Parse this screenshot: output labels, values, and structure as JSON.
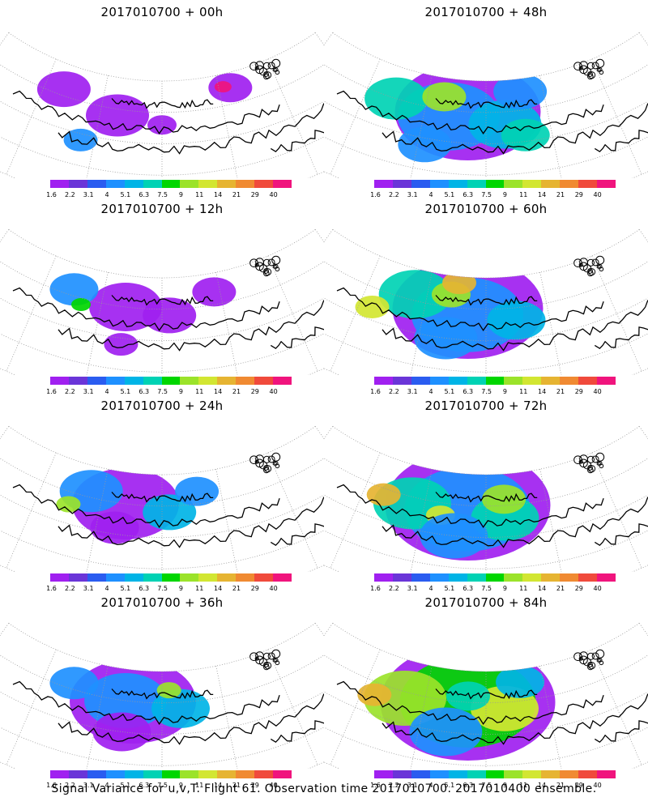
{
  "panels": [
    {
      "title": "2017010700 + 00h",
      "coverage": 0.15
    },
    {
      "title": "2017010700 + 48h",
      "coverage": 0.6
    },
    {
      "title": "2017010700 + 12h",
      "coverage": 0.25
    },
    {
      "title": "2017010700 + 60h",
      "coverage": 0.7
    },
    {
      "title": "2017010700 + 24h",
      "coverage": 0.35
    },
    {
      "title": "2017010700 + 72h",
      "coverage": 0.8
    },
    {
      "title": "2017010700 + 36h",
      "coverage": 0.45
    },
    {
      "title": "2017010700 + 84h",
      "coverage": 0.9
    }
  ],
  "colorbar": {
    "labels": [
      "1.6",
      "2.2",
      "3.1",
      "4",
      "5.1",
      "6.3",
      "7.5",
      "9",
      "11",
      "14",
      "21",
      "29",
      "40"
    ],
    "colors": [
      "#a020f0",
      "#6a35d8",
      "#2a5cf0",
      "#1e90ff",
      "#00b4e6",
      "#00d2b4",
      "#00d600",
      "#9be32a",
      "#d2e632",
      "#e6b432",
      "#f08a32",
      "#f04a3c",
      "#f0147d"
    ]
  },
  "caption": "Signal Variance for u,v,T. Flight 61. Observation time 2017010700. 2017010400 ensemble."
}
